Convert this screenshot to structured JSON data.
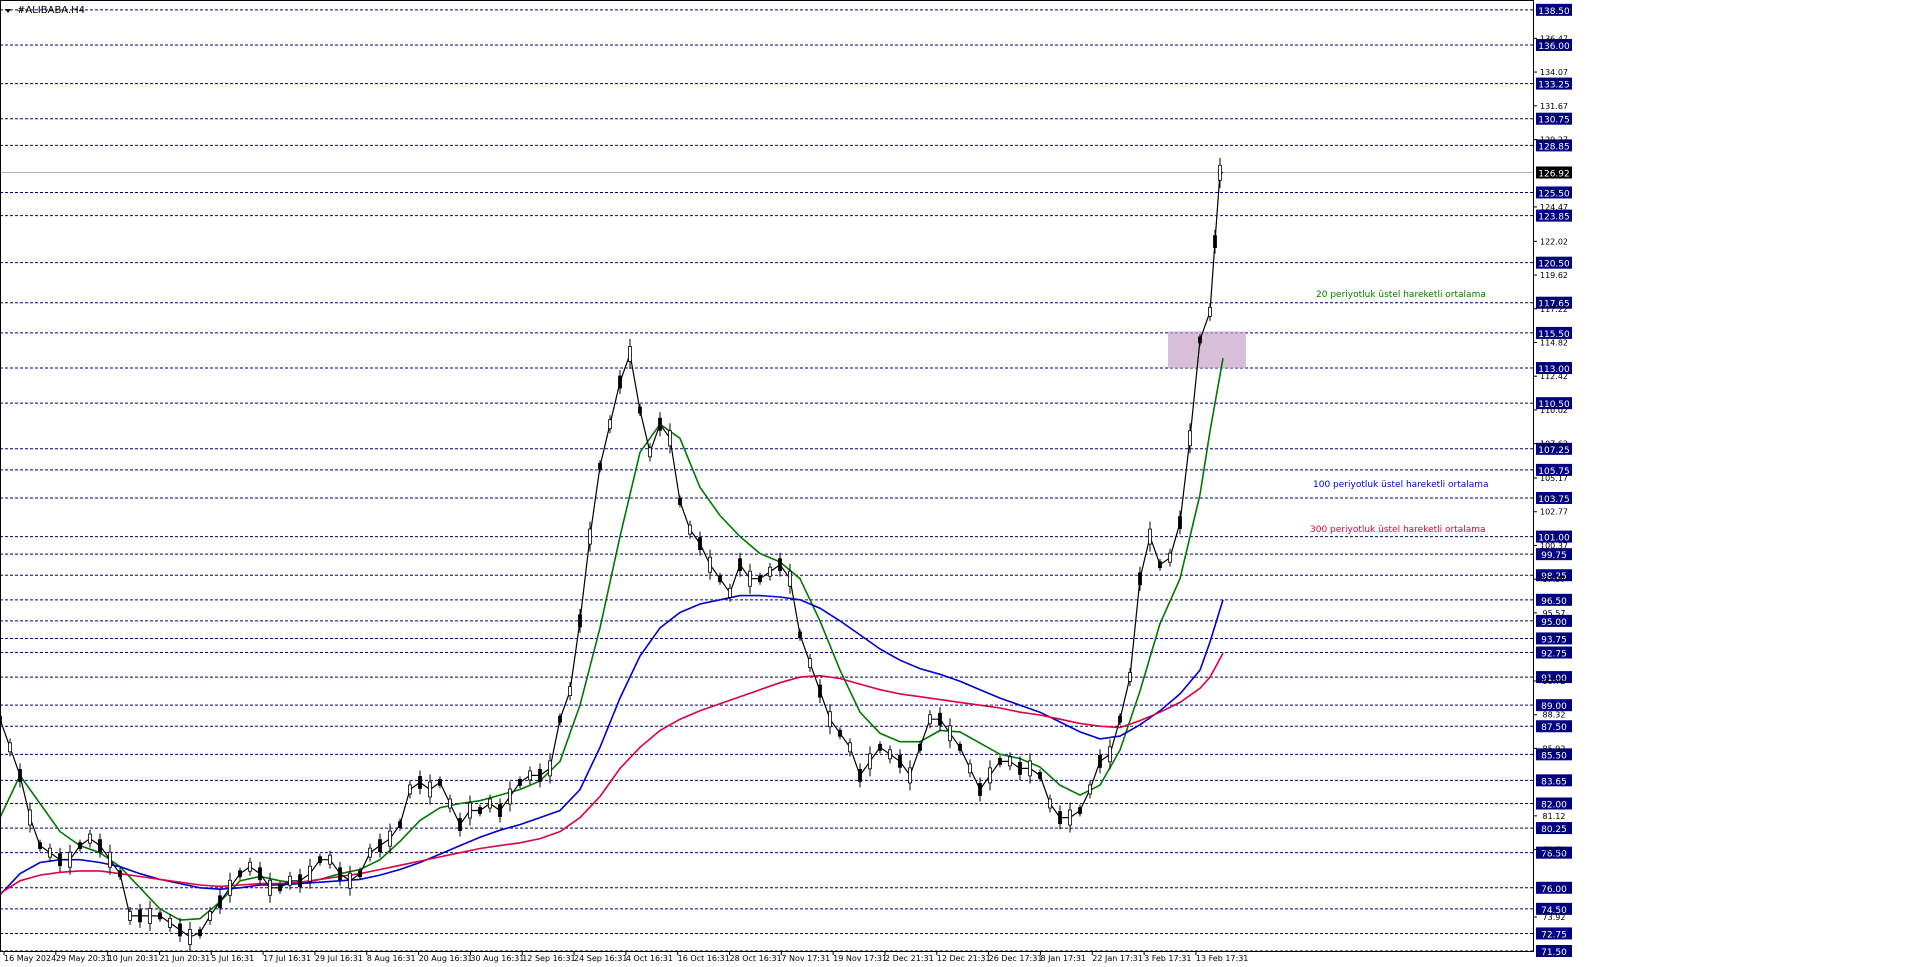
{
  "window": {
    "title": "#ALIBABA.H4"
  },
  "chart_data": {
    "type": "line",
    "symbol": "#ALIBABA.H4",
    "ylim": [
      71.5,
      139.2
    ],
    "grid": false,
    "current_price": "126.92",
    "level_lines": [
      "138.50",
      "136.00",
      "133.25",
      "130.75",
      "128.85",
      "125.50",
      "123.85",
      "120.50",
      "117.65",
      "115.50",
      "113.00",
      "110.50",
      "107.25",
      "105.75",
      "103.75",
      "101.00",
      "99.75",
      "98.25",
      "96.50",
      "95.00",
      "93.75",
      "92.75",
      "91.00",
      "89.00",
      "87.50",
      "85.50",
      "83.65",
      "82.00",
      "80.25",
      "78.50",
      "76.00",
      "74.50",
      "72.75",
      "71.50"
    ],
    "axis_ticks": [
      "136.47",
      "134.07",
      "131.67",
      "129.27",
      "124.47",
      "122.02",
      "119.62",
      "117.22",
      "114.82",
      "112.42",
      "110.02",
      "107.62",
      "105.17",
      "102.77",
      "100.37",
      "97.97",
      "95.57",
      "90.72",
      "88.32",
      "85.92",
      "81.12",
      "78.72",
      "73.92"
    ],
    "x_labels": [
      "16 May 2024",
      "29 May 20:31",
      "10 Jun 20:31",
      "21 Jun 20:31",
      "5 Jul 16:31",
      "17 Jul 16:31",
      "29 Jul 16:31",
      "8 Aug 16:31",
      "20 Aug 16:31",
      "30 Aug 16:31",
      "12 Sep 16:31",
      "24 Sep 16:31",
      "4 Oct 16:31",
      "16 Oct 16:31",
      "28 Oct 16:31",
      "7 Nov 17:31",
      "19 Nov 17:31",
      "2 Dec 21:31",
      "12 Dec 21:31",
      "26 Dec 17:31",
      "8 Jan 17:31",
      "22 Jan 17:31",
      "3 Feb 17:31",
      "13 Feb 17:31"
    ],
    "close_path": [
      [
        0,
        88
      ],
      [
        10,
        86
      ],
      [
        20,
        84
      ],
      [
        30,
        81
      ],
      [
        40,
        79
      ],
      [
        50,
        78.5
      ],
      [
        60,
        78
      ],
      [
        70,
        78
      ],
      [
        80,
        79
      ],
      [
        90,
        79.5
      ],
      [
        100,
        79
      ],
      [
        110,
        78
      ],
      [
        120,
        77
      ],
      [
        130,
        74
      ],
      [
        140,
        74
      ],
      [
        150,
        74
      ],
      [
        160,
        74
      ],
      [
        170,
        73.5
      ],
      [
        180,
        73
      ],
      [
        190,
        72.5
      ],
      [
        200,
        72.8
      ],
      [
        210,
        74
      ],
      [
        220,
        75
      ],
      [
        230,
        76
      ],
      [
        240,
        77
      ],
      [
        250,
        77.5
      ],
      [
        260,
        77
      ],
      [
        270,
        76
      ],
      [
        280,
        76
      ],
      [
        290,
        76.5
      ],
      [
        300,
        76.5
      ],
      [
        310,
        77
      ],
      [
        320,
        78
      ],
      [
        330,
        78
      ],
      [
        340,
        77
      ],
      [
        350,
        76.5
      ],
      [
        360,
        77
      ],
      [
        370,
        78.5
      ],
      [
        380,
        79
      ],
      [
        390,
        79.5
      ],
      [
        400,
        80.5
      ],
      [
        410,
        83
      ],
      [
        420,
        83.5
      ],
      [
        430,
        83
      ],
      [
        440,
        83.5
      ],
      [
        450,
        82
      ],
      [
        460,
        80.5
      ],
      [
        470,
        81.5
      ],
      [
        480,
        81.5
      ],
      [
        490,
        82
      ],
      [
        500,
        81.5
      ],
      [
        510,
        82.5
      ],
      [
        520,
        83.5
      ],
      [
        530,
        84
      ],
      [
        540,
        84
      ],
      [
        550,
        84.5
      ],
      [
        560,
        88
      ],
      [
        570,
        90
      ],
      [
        580,
        95
      ],
      [
        590,
        101
      ],
      [
        600,
        106
      ],
      [
        610,
        109
      ],
      [
        620,
        112
      ],
      [
        630,
        114
      ],
      [
        640,
        110
      ],
      [
        650,
        107
      ],
      [
        660,
        109
      ],
      [
        670,
        108
      ],
      [
        680,
        103.5
      ],
      [
        690,
        101.5
      ],
      [
        700,
        100.5
      ],
      [
        710,
        99
      ],
      [
        720,
        98
      ],
      [
        730,
        97
      ],
      [
        740,
        99
      ],
      [
        750,
        98
      ],
      [
        760,
        98
      ],
      [
        770,
        98.5
      ],
      [
        780,
        99
      ],
      [
        790,
        98
      ],
      [
        800,
        94
      ],
      [
        810,
        92
      ],
      [
        820,
        90
      ],
      [
        830,
        88
      ],
      [
        840,
        87
      ],
      [
        850,
        86
      ],
      [
        860,
        84
      ],
      [
        870,
        85
      ],
      [
        880,
        86
      ],
      [
        890,
        85.5
      ],
      [
        900,
        85
      ],
      [
        910,
        84
      ],
      [
        920,
        86
      ],
      [
        930,
        88
      ],
      [
        940,
        88
      ],
      [
        950,
        87
      ],
      [
        960,
        86
      ],
      [
        970,
        84.5
      ],
      [
        980,
        83
      ],
      [
        990,
        84
      ],
      [
        1000,
        85
      ],
      [
        1010,
        85
      ],
      [
        1020,
        84.5
      ],
      [
        1030,
        84.5
      ],
      [
        1040,
        84
      ],
      [
        1050,
        82
      ],
      [
        1060,
        81
      ],
      [
        1070,
        81
      ],
      [
        1080,
        81.5
      ],
      [
        1090,
        83
      ],
      [
        1100,
        85
      ],
      [
        1110,
        85.5
      ],
      [
        1120,
        88
      ],
      [
        1130,
        91
      ],
      [
        1140,
        98
      ],
      [
        1150,
        101
      ],
      [
        1160,
        99
      ],
      [
        1170,
        99.5
      ],
      [
        1180,
        102
      ],
      [
        1190,
        108
      ],
      [
        1200,
        115
      ],
      [
        1210,
        117
      ],
      [
        1215,
        122
      ],
      [
        1220,
        126.9
      ]
    ],
    "current_path": [
      [
        1220,
        126.9
      ],
      [
        1223,
        126.92
      ]
    ],
    "series": [
      {
        "name": "20 periyotluk üstel hareketli ortalama",
        "color": "#007800",
        "values": [
          [
            0,
            81
          ],
          [
            20,
            84
          ],
          [
            40,
            82
          ],
          [
            60,
            80
          ],
          [
            80,
            79
          ],
          [
            100,
            78.5
          ],
          [
            120,
            77.5
          ],
          [
            140,
            76
          ],
          [
            160,
            74.5
          ],
          [
            180,
            73.7
          ],
          [
            200,
            73.8
          ],
          [
            220,
            75
          ],
          [
            240,
            76.5
          ],
          [
            260,
            76.8
          ],
          [
            280,
            76.5
          ],
          [
            300,
            76.3
          ],
          [
            320,
            76.6
          ],
          [
            340,
            77
          ],
          [
            360,
            77.3
          ],
          [
            380,
            78
          ],
          [
            400,
            79.3
          ],
          [
            420,
            80.8
          ],
          [
            440,
            81.7
          ],
          [
            460,
            82
          ],
          [
            480,
            82.2
          ],
          [
            500,
            82.6
          ],
          [
            520,
            83
          ],
          [
            540,
            83.6
          ],
          [
            560,
            85
          ],
          [
            580,
            89
          ],
          [
            600,
            94.5
          ],
          [
            620,
            101
          ],
          [
            640,
            107
          ],
          [
            660,
            109
          ],
          [
            680,
            108
          ],
          [
            700,
            104.5
          ],
          [
            720,
            102.5
          ],
          [
            740,
            101
          ],
          [
            760,
            99.8
          ],
          [
            780,
            99.2
          ],
          [
            800,
            98
          ],
          [
            820,
            95
          ],
          [
            840,
            91.5
          ],
          [
            860,
            88.5
          ],
          [
            880,
            87
          ],
          [
            900,
            86.4
          ],
          [
            920,
            86.4
          ],
          [
            940,
            87.2
          ],
          [
            960,
            87.1
          ],
          [
            980,
            86.3
          ],
          [
            1000,
            85.5
          ],
          [
            1020,
            85.2
          ],
          [
            1040,
            84.6
          ],
          [
            1060,
            83.3
          ],
          [
            1080,
            82.6
          ],
          [
            1100,
            83.3
          ],
          [
            1120,
            85.8
          ],
          [
            1140,
            90
          ],
          [
            1160,
            94.8
          ],
          [
            1180,
            98
          ],
          [
            1200,
            104
          ],
          [
            1210,
            108.5
          ],
          [
            1223,
            113.7
          ]
        ]
      },
      {
        "name": "100 periyotluk üstel hareketli ortalama",
        "color": "#0000cc",
        "values": [
          [
            0,
            75.5
          ],
          [
            20,
            77
          ],
          [
            40,
            77.8
          ],
          [
            60,
            78
          ],
          [
            80,
            78
          ],
          [
            100,
            77.8
          ],
          [
            120,
            77.5
          ],
          [
            140,
            77
          ],
          [
            160,
            76.6
          ],
          [
            180,
            76.3
          ],
          [
            200,
            76
          ],
          [
            220,
            75.9
          ],
          [
            240,
            76
          ],
          [
            260,
            76.2
          ],
          [
            280,
            76.2
          ],
          [
            300,
            76.3
          ],
          [
            320,
            76.4
          ],
          [
            340,
            76.5
          ],
          [
            360,
            76.6
          ],
          [
            380,
            76.9
          ],
          [
            400,
            77.3
          ],
          [
            420,
            77.8
          ],
          [
            440,
            78.4
          ],
          [
            460,
            79
          ],
          [
            480,
            79.6
          ],
          [
            500,
            80.1
          ],
          [
            520,
            80.5
          ],
          [
            540,
            81
          ],
          [
            560,
            81.5
          ],
          [
            580,
            83
          ],
          [
            600,
            86
          ],
          [
            620,
            89.5
          ],
          [
            640,
            92.5
          ],
          [
            660,
            94.5
          ],
          [
            680,
            95.6
          ],
          [
            700,
            96.2
          ],
          [
            720,
            96.5
          ],
          [
            740,
            96.8
          ],
          [
            760,
            96.8
          ],
          [
            780,
            96.7
          ],
          [
            800,
            96.5
          ],
          [
            820,
            95.9
          ],
          [
            840,
            95
          ],
          [
            860,
            94
          ],
          [
            880,
            93
          ],
          [
            900,
            92.2
          ],
          [
            920,
            91.6
          ],
          [
            940,
            91.2
          ],
          [
            960,
            90.7
          ],
          [
            980,
            90.1
          ],
          [
            1000,
            89.5
          ],
          [
            1020,
            89
          ],
          [
            1040,
            88.5
          ],
          [
            1060,
            87.8
          ],
          [
            1080,
            87.1
          ],
          [
            1100,
            86.6
          ],
          [
            1120,
            86.8
          ],
          [
            1140,
            87.6
          ],
          [
            1160,
            88.6
          ],
          [
            1180,
            89.8
          ],
          [
            1200,
            91.5
          ],
          [
            1210,
            93.5
          ],
          [
            1223,
            96.5
          ]
        ]
      },
      {
        "name": "300 periyotluk üstel hareketli ortalama",
        "color": "#dd0044",
        "values": [
          [
            0,
            75.6
          ],
          [
            20,
            76.5
          ],
          [
            40,
            76.9
          ],
          [
            60,
            77.1
          ],
          [
            80,
            77.2
          ],
          [
            100,
            77.2
          ],
          [
            120,
            77
          ],
          [
            140,
            76.8
          ],
          [
            160,
            76.6
          ],
          [
            180,
            76.4
          ],
          [
            200,
            76.2
          ],
          [
            220,
            76.1
          ],
          [
            240,
            76.2
          ],
          [
            260,
            76.3
          ],
          [
            280,
            76.3
          ],
          [
            300,
            76.4
          ],
          [
            320,
            76.6
          ],
          [
            340,
            76.8
          ],
          [
            360,
            77
          ],
          [
            380,
            77.3
          ],
          [
            400,
            77.6
          ],
          [
            420,
            77.9
          ],
          [
            440,
            78.2
          ],
          [
            460,
            78.5
          ],
          [
            480,
            78.8
          ],
          [
            500,
            79
          ],
          [
            520,
            79.2
          ],
          [
            540,
            79.5
          ],
          [
            560,
            80
          ],
          [
            580,
            81
          ],
          [
            600,
            82.5
          ],
          [
            620,
            84.5
          ],
          [
            640,
            86
          ],
          [
            660,
            87.2
          ],
          [
            680,
            88
          ],
          [
            700,
            88.6
          ],
          [
            720,
            89.1
          ],
          [
            740,
            89.6
          ],
          [
            760,
            90.1
          ],
          [
            780,
            90.6
          ],
          [
            800,
            91
          ],
          [
            820,
            91.1
          ],
          [
            840,
            90.9
          ],
          [
            860,
            90.5
          ],
          [
            880,
            90.1
          ],
          [
            900,
            89.8
          ],
          [
            920,
            89.6
          ],
          [
            940,
            89.4
          ],
          [
            960,
            89.2
          ],
          [
            980,
            89
          ],
          [
            1000,
            88.8
          ],
          [
            1020,
            88.5
          ],
          [
            1040,
            88.3
          ],
          [
            1060,
            88
          ],
          [
            1080,
            87.7
          ],
          [
            1100,
            87.5
          ],
          [
            1120,
            87.4
          ],
          [
            1140,
            87.9
          ],
          [
            1160,
            88.5
          ],
          [
            1180,
            89.2
          ],
          [
            1200,
            90.2
          ],
          [
            1210,
            91
          ],
          [
            1223,
            92.7
          ]
        ]
      }
    ],
    "annotations": [
      {
        "text": "20 periyotluk üstel hareketli ortalama",
        "color": "#007800"
      },
      {
        "text": "100 periyotluk üstel hareketli ortalama",
        "color": "#0000cc"
      },
      {
        "text": "300 periyotluk üstel hareketli ortalama",
        "color": "#dd0044"
      }
    ],
    "zone": {
      "y_low": 113,
      "y_high": 115.6
    },
    "colors": {
      "level": "#000080",
      "price_label": "#000080",
      "current_label": "#000000",
      "zone": "#c8a2c8"
    }
  }
}
